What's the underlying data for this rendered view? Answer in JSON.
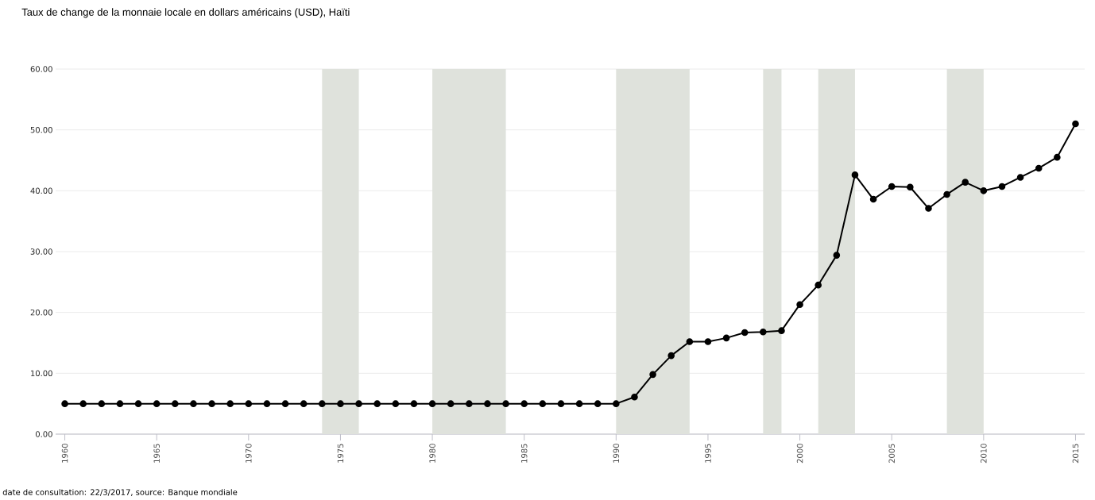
{
  "chart_data": {
    "type": "line",
    "title": "Taux de change de la monnaie locale en dollars américains (USD), Haïti",
    "annotations": [
      "date de consultation: 22/3/2017, source: Banque mondiale"
    ],
    "x": [
      1960,
      1961,
      1962,
      1963,
      1964,
      1965,
      1966,
      1967,
      1968,
      1969,
      1970,
      1971,
      1972,
      1973,
      1974,
      1975,
      1976,
      1977,
      1978,
      1979,
      1980,
      1981,
      1982,
      1983,
      1984,
      1985,
      1986,
      1987,
      1988,
      1989,
      1990,
      1991,
      1992,
      1993,
      1994,
      1995,
      1996,
      1997,
      1998,
      1999,
      2000,
      2001,
      2002,
      2003,
      2004,
      2005,
      2006,
      2007,
      2008,
      2009,
      2010,
      2011,
      2012,
      2013,
      2014,
      2015
    ],
    "series": [
      {
        "color": "#000000",
        "values": [
          5.0,
          5.0,
          5.0,
          5.0,
          5.0,
          5.0,
          5.0,
          5.0,
          5.0,
          5.0,
          5.0,
          5.0,
          5.0,
          5.0,
          5.0,
          5.0,
          5.0,
          5.0,
          5.0,
          5.0,
          5.0,
          5.0,
          5.0,
          5.0,
          5.0,
          5.0,
          5.0,
          5.0,
          5.0,
          5.0,
          5.0,
          6.1,
          9.8,
          12.9,
          15.2,
          15.2,
          15.8,
          16.7,
          16.8,
          17.0,
          21.3,
          24.5,
          29.4,
          42.6,
          38.6,
          40.7,
          40.6,
          37.1,
          39.4,
          41.4,
          40.0,
          40.7,
          42.2,
          43.7,
          45.5,
          51.0
        ]
      }
    ],
    "xlim": [
      1959.5,
      2015.5
    ],
    "xticks": [
      1960,
      1965,
      1970,
      1975,
      1980,
      1985,
      1990,
      1995,
      2000,
      2005,
      2010,
      2015
    ],
    "ylim": [
      0,
      60
    ],
    "yticks": [
      {
        "value": 0,
        "label": "0.00"
      },
      {
        "value": 10,
        "label": "10.00"
      },
      {
        "value": 20,
        "label": "20.00"
      },
      {
        "value": 30,
        "label": "30.00"
      },
      {
        "value": 40,
        "label": "40.00"
      },
      {
        "value": 50,
        "label": "50.00"
      },
      {
        "value": 60,
        "label": "60.00"
      }
    ],
    "bands": [
      {
        "axis": "x",
        "from": 1974,
        "to": 1976,
        "color": "#dfe2dc"
      },
      {
        "axis": "x",
        "from": 1980,
        "to": 1984,
        "color": "#dfe2dc"
      },
      {
        "axis": "x",
        "from": 1990,
        "to": 1994,
        "color": "#dfe2dc"
      },
      {
        "axis": "x",
        "from": 1998,
        "to": 1999,
        "color": "#dfe2dc"
      },
      {
        "axis": "x",
        "from": 2001,
        "to": 2003,
        "color": "#dfe2dc"
      },
      {
        "axis": "x",
        "from": 2008,
        "to": 2010,
        "color": "#dfe2dc"
      }
    ],
    "grid": "y",
    "marker": "circle",
    "line_style": "solid"
  }
}
